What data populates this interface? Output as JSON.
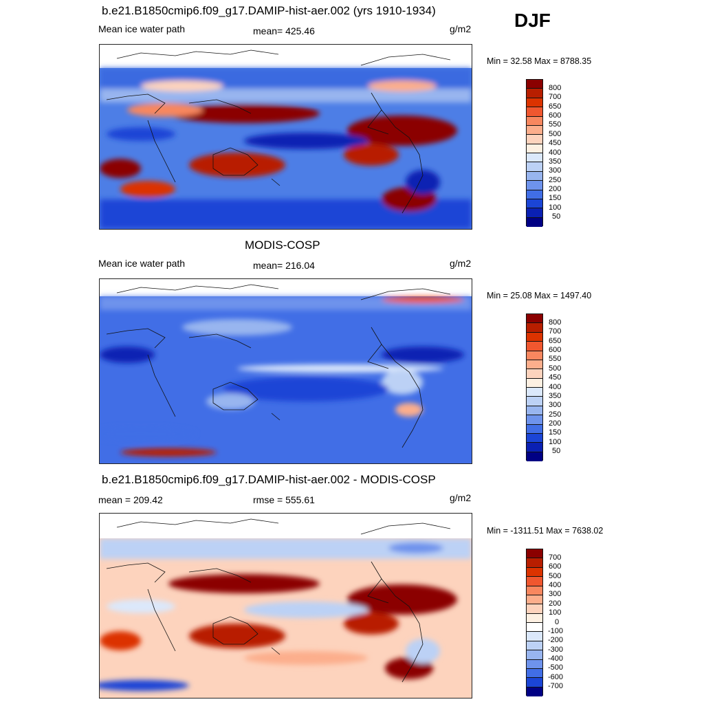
{
  "season": "DJF",
  "panels": [
    {
      "title": "b.e21.B1850cmip6.f09_g17.DAMIP-hist-aer.002 (yrs 1910-1934)",
      "left_label": "Mean ice water path",
      "center_label": "mean= 425.46",
      "units": "g/m2",
      "minmax": "Min =  32.58 Max = 8788.35",
      "colorbar": {
        "labels": [
          "800",
          "700",
          "650",
          "600",
          "550",
          "500",
          "450",
          "400",
          "350",
          "300",
          "250",
          "200",
          "150",
          "100",
          "50"
        ],
        "colors": [
          "#8b0000",
          "#b81e00",
          "#dc3300",
          "#f0572f",
          "#f8875f",
          "#fcae8c",
          "#fdd3bd",
          "#fdf0e2",
          "#dbe8fb",
          "#bcd1f5",
          "#98b5ef",
          "#6e93ec",
          "#416ee6",
          "#1b45d6",
          "#0a20b3",
          "#000084"
        ]
      }
    },
    {
      "title": "MODIS-COSP",
      "left_label": "Mean ice water path",
      "center_label": "mean= 216.04",
      "units": "g/m2",
      "minmax": "Min =  25.08 Max = 1497.40",
      "colorbar": {
        "labels": [
          "800",
          "700",
          "650",
          "600",
          "550",
          "500",
          "450",
          "400",
          "350",
          "300",
          "250",
          "200",
          "150",
          "100",
          "50"
        ],
        "colors": [
          "#8b0000",
          "#b81e00",
          "#dc3300",
          "#f0572f",
          "#f8875f",
          "#fcae8c",
          "#fdd3bd",
          "#fdf0e2",
          "#dbe8fb",
          "#bcd1f5",
          "#98b5ef",
          "#6e93ec",
          "#416ee6",
          "#1b45d6",
          "#0a20b3",
          "#000084"
        ]
      }
    },
    {
      "title": "b.e21.B1850cmip6.f09_g17.DAMIP-hist-aer.002 - MODIS-COSP",
      "left_label": "mean = 209.42",
      "center_label": "rmse = 555.61",
      "units": "g/m2",
      "minmax": "Min = -1311.51 Max = 7638.02",
      "colorbar": {
        "labels": [
          "700",
          "600",
          "500",
          "400",
          "300",
          "200",
          "100",
          "0",
          "-100",
          "-200",
          "-300",
          "-400",
          "-500",
          "-600",
          "-700"
        ],
        "colors": [
          "#8b0000",
          "#b81e00",
          "#dc3300",
          "#f0572f",
          "#f8875f",
          "#fcae8c",
          "#fdd3bd",
          "#fdf0e2",
          "#ffffff",
          "#dbe8fb",
          "#bcd1f5",
          "#98b5ef",
          "#6e93ec",
          "#416ee6",
          "#1b45d6",
          "#000084"
        ]
      }
    }
  ]
}
